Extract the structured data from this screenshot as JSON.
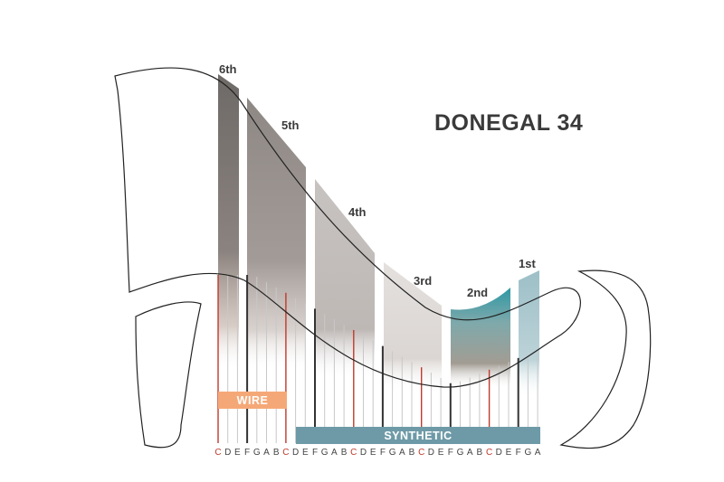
{
  "title": "DONEGAL 34",
  "octaves": [
    "6th",
    "5th",
    "4th",
    "3rd",
    "2nd",
    "1st"
  ],
  "bands": {
    "wire": "WIRE",
    "synthetic": "SYNTHETIC"
  },
  "notes": [
    "C",
    "D",
    "E",
    "F",
    "G",
    "A",
    "B",
    "C",
    "D",
    "E",
    "F",
    "G",
    "A",
    "B",
    "C",
    "D",
    "E",
    "F",
    "G",
    "A",
    "B",
    "C",
    "D",
    "E",
    "F",
    "G",
    "A",
    "B",
    "C",
    "D",
    "E",
    "F",
    "G",
    "A"
  ],
  "colors": {
    "octave6": "#6e6a67",
    "octave5": "#a39b97",
    "octave4": "#c3bfbc",
    "octave3": "#e0dcd9",
    "octave2": "#3f9ea8",
    "octave1": "#a8c8cf",
    "wire": "#f5a877",
    "synthetic": "#6e9aa7",
    "c_string": "#c0392b"
  }
}
